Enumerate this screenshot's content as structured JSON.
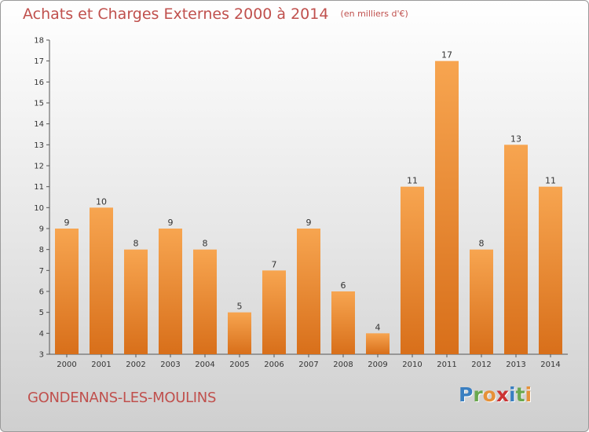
{
  "header": {
    "title": "Achats et Charges Externes 2000 à 2014",
    "subtitle": "(en milliers d'€)"
  },
  "footer": {
    "commune": "GONDENANS-LES-MOULINS",
    "logo": "Proxiti"
  },
  "chart_data": {
    "type": "bar",
    "title": "Achats et Charges Externes 2000 à 2014",
    "subtitle": "(en milliers d'€)",
    "categories": [
      "2000",
      "2001",
      "2002",
      "2003",
      "2004",
      "2005",
      "2006",
      "2007",
      "2008",
      "2009",
      "2010",
      "2011",
      "2012",
      "2013",
      "2014"
    ],
    "values": [
      9,
      10,
      8,
      9,
      8,
      5,
      7,
      9,
      6,
      4,
      11,
      17,
      8,
      13,
      11
    ],
    "ylim": [
      3,
      18
    ],
    "yticks": [
      3,
      4,
      5,
      6,
      7,
      8,
      9,
      10,
      11,
      12,
      13,
      14,
      15,
      16,
      17,
      18
    ],
    "grid": false,
    "bar_color": "#e8832a",
    "data_labels": true
  }
}
